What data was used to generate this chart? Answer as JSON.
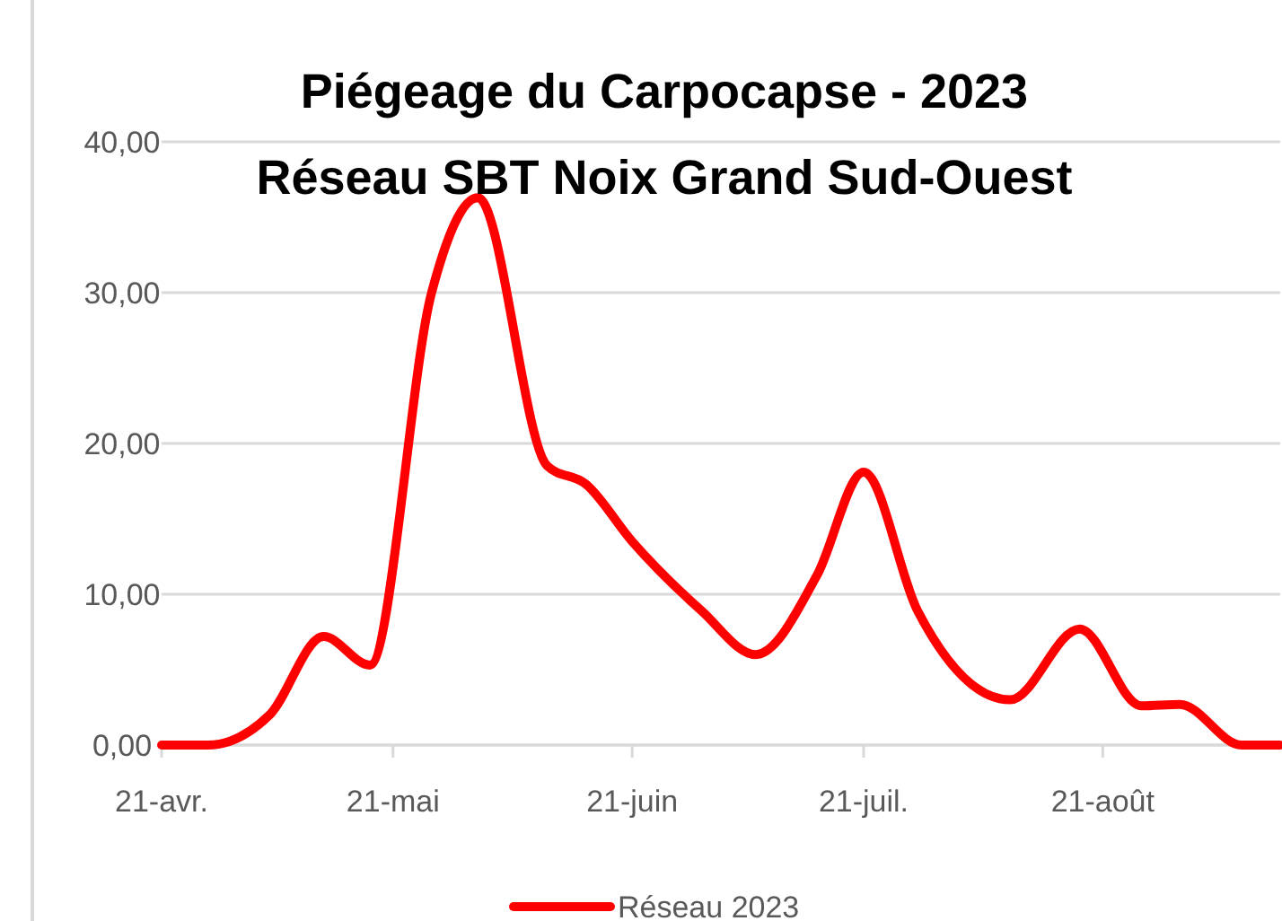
{
  "chart_data": {
    "type": "line",
    "title": "Piégeage du Carpocapse - 2023",
    "subtitle": "Réseau SBT Noix Grand Sud-Ouest",
    "x": [
      "2023-04-21",
      "2023-04-27",
      "2023-05-05",
      "2023-05-12",
      "2023-05-18",
      "2023-05-26",
      "2023-06-01",
      "2023-06-10",
      "2023-06-15",
      "2023-06-21",
      "2023-06-30",
      "2023-07-07",
      "2023-07-15",
      "2023-07-21",
      "2023-07-28",
      "2023-08-09",
      "2023-08-18",
      "2023-08-26",
      "2023-08-31",
      "2023-09-08",
      "2023-09-13"
    ],
    "series": [
      {
        "name": "Réseau 2023",
        "color": "#ff0000",
        "values": [
          0,
          0,
          2,
          7.2,
          5.3,
          30,
          36.3,
          18.5,
          17.3,
          13.5,
          8.9,
          6,
          11.3,
          18.1,
          8.9,
          3,
          7.7,
          2.6,
          2.7,
          0,
          0
        ]
      }
    ],
    "xlim": [
      "2023-04-21",
      "2023-09-13"
    ],
    "xticks": [
      {
        "value": "2023-04-21",
        "label": "21-avr."
      },
      {
        "value": "2023-05-21",
        "label": "21-mai"
      },
      {
        "value": "2023-06-21",
        "label": "21-juin"
      },
      {
        "value": "2023-07-21",
        "label": "21-juil."
      },
      {
        "value": "2023-08-21",
        "label": "21-août"
      }
    ],
    "ylim": [
      0,
      40
    ],
    "yticks": [
      {
        "value": 0,
        "label": "0,00"
      },
      {
        "value": 10,
        "label": "10,00"
      },
      {
        "value": 20,
        "label": "20,00"
      },
      {
        "value": 30,
        "label": "30,00"
      },
      {
        "value": 40,
        "label": "40,00"
      }
    ],
    "grid": "y",
    "legend": "bottom",
    "line_style": "solid",
    "marker": "none"
  }
}
